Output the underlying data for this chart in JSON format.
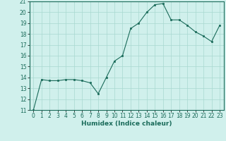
{
  "x": [
    0,
    1,
    2,
    3,
    4,
    5,
    6,
    7,
    8,
    9,
    10,
    11,
    12,
    13,
    14,
    15,
    16,
    17,
    18,
    19,
    20,
    21,
    22,
    23
  ],
  "y": [
    11,
    13.8,
    13.7,
    13.7,
    13.8,
    13.8,
    13.7,
    13.5,
    12.5,
    14.0,
    15.5,
    16.0,
    18.5,
    19.0,
    20.0,
    20.7,
    20.8,
    19.3,
    19.3,
    18.8,
    18.2,
    17.8,
    17.3,
    18.8
  ],
  "line_color": "#1a6b5a",
  "marker": "s",
  "marker_size": 2,
  "bg_color": "#d0f0ec",
  "grid_color": "#a8d8d0",
  "xlabel": "Humidex (Indice chaleur)",
  "xlim": [
    -0.5,
    23.5
  ],
  "ylim": [
    11,
    21
  ],
  "xticks": [
    0,
    1,
    2,
    3,
    4,
    5,
    6,
    7,
    8,
    9,
    10,
    11,
    12,
    13,
    14,
    15,
    16,
    17,
    18,
    19,
    20,
    21,
    22,
    23
  ],
  "yticks": [
    11,
    12,
    13,
    14,
    15,
    16,
    17,
    18,
    19,
    20,
    21
  ],
  "tick_label_size": 5.5,
  "xlabel_size": 6.5
}
